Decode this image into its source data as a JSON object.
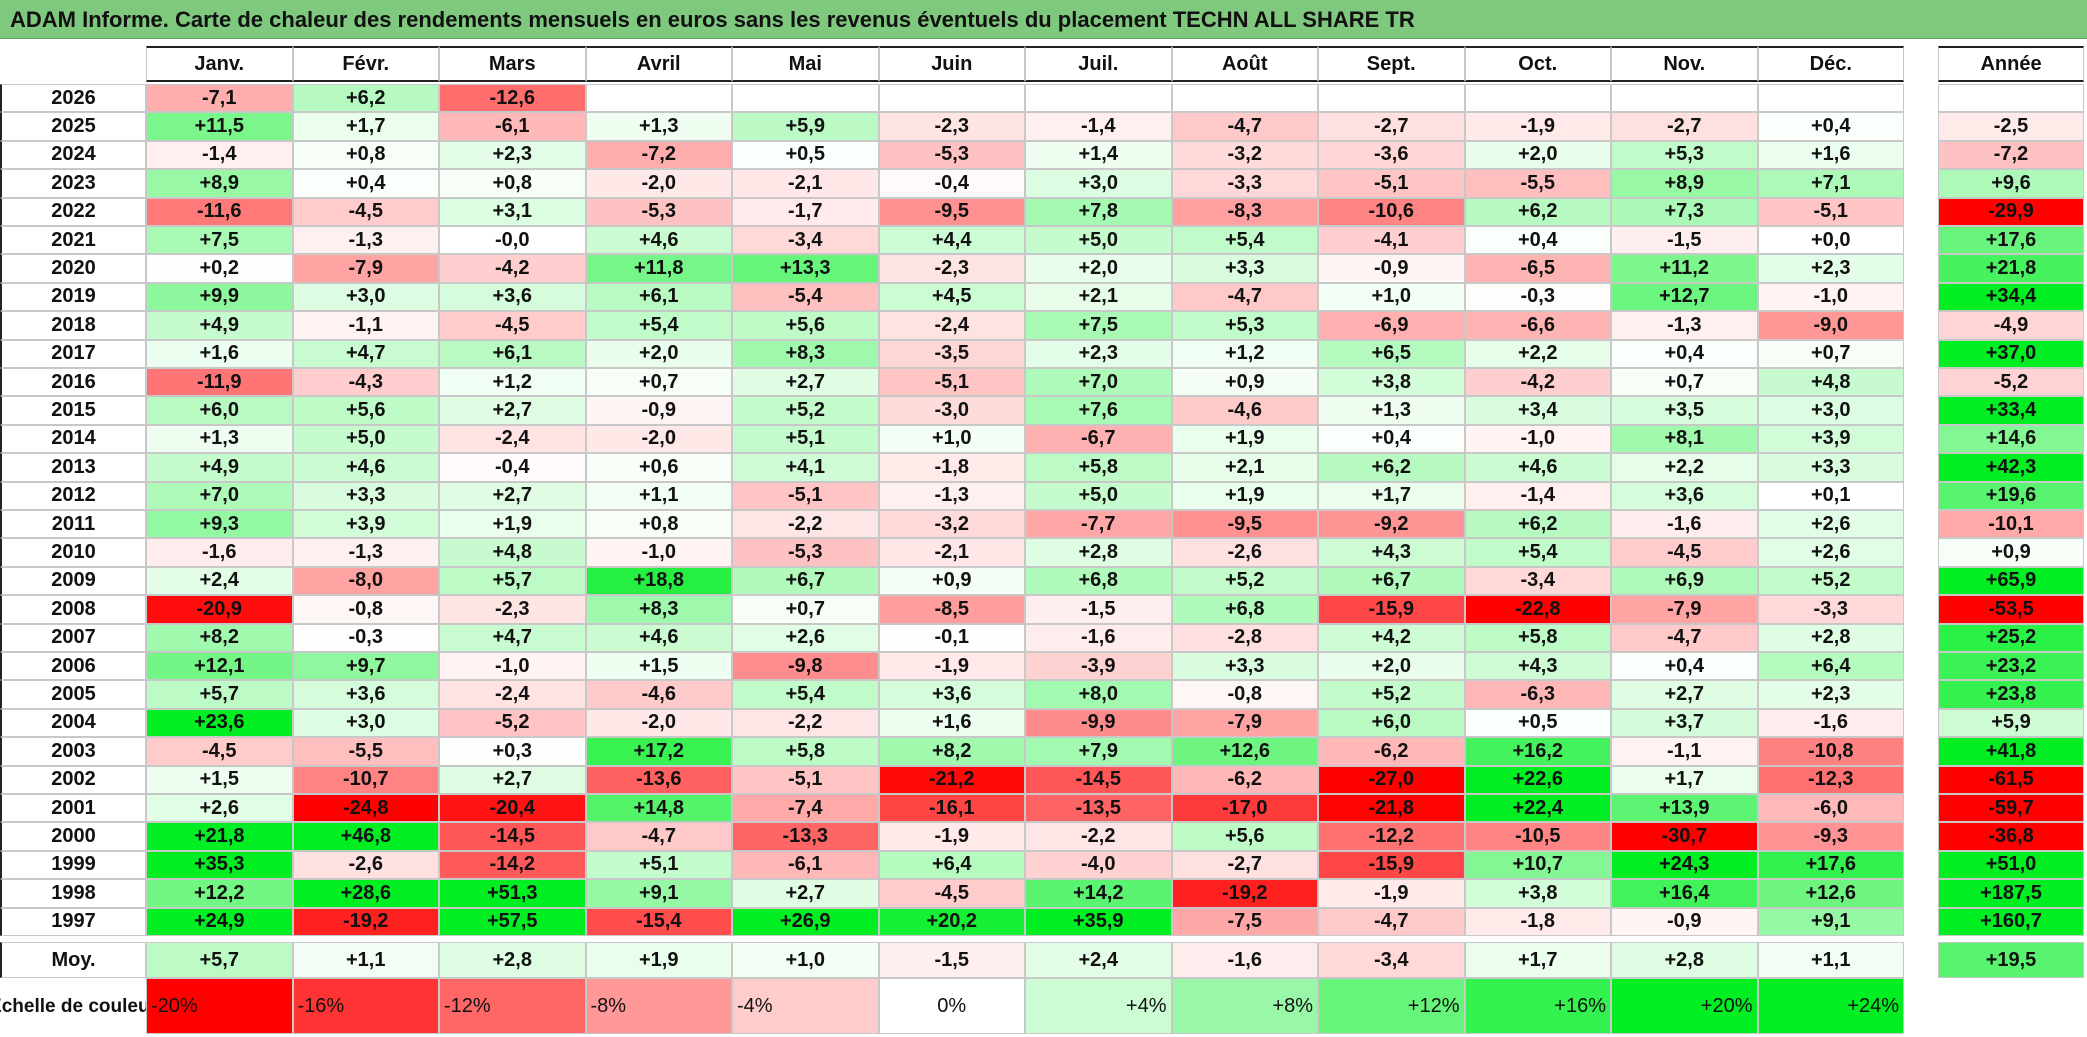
{
  "title": "ADAM Informe. Carte de chaleur des rendements mensuels en euros sans les revenus éventuels du placement TECHN ALL SHARE TR",
  "chart_data": {
    "type": "heatmap",
    "columns": [
      "Janv.",
      "Févr.",
      "Mars",
      "Avril",
      "Mai",
      "Juin",
      "Juil.",
      "Août",
      "Sept.",
      "Oct.",
      "Nov.",
      "Déc."
    ],
    "year_header": "Année",
    "rows": [
      {
        "year": "2026",
        "values": [
          "-7,1",
          "+6,2",
          "-12,6",
          "",
          "",
          "",
          "",
          "",
          "",
          "",
          "",
          ""
        ],
        "annual": ""
      },
      {
        "year": "2025",
        "values": [
          "+11,5",
          "+1,7",
          "-6,1",
          "+1,3",
          "+5,9",
          "-2,3",
          "-1,4",
          "-4,7",
          "-2,7",
          "-1,9",
          "-2,7",
          "+0,4"
        ],
        "annual": "-2,5"
      },
      {
        "year": "2024",
        "values": [
          "-1,4",
          "+0,8",
          "+2,3",
          "-7,2",
          "+0,5",
          "-5,3",
          "+1,4",
          "-3,2",
          "-3,6",
          "+2,0",
          "+5,3",
          "+1,6"
        ],
        "annual": "-7,2"
      },
      {
        "year": "2023",
        "values": [
          "+8,9",
          "+0,4",
          "+0,8",
          "-2,0",
          "-2,1",
          "-0,4",
          "+3,0",
          "-3,3",
          "-5,1",
          "-5,5",
          "+8,9",
          "+7,1"
        ],
        "annual": "+9,6"
      },
      {
        "year": "2022",
        "values": [
          "-11,6",
          "-4,5",
          "+3,1",
          "-5,3",
          "-1,7",
          "-9,5",
          "+7,8",
          "-8,3",
          "-10,6",
          "+6,2",
          "+7,3",
          "-5,1"
        ],
        "annual": "-29,9"
      },
      {
        "year": "2021",
        "values": [
          "+7,5",
          "-1,3",
          "-0,0",
          "+4,6",
          "-3,4",
          "+4,4",
          "+5,0",
          "+5,4",
          "-4,1",
          "+0,4",
          "-1,5",
          "+0,0"
        ],
        "annual": "+17,6"
      },
      {
        "year": "2020",
        "values": [
          "+0,2",
          "-7,9",
          "-4,2",
          "+11,8",
          "+13,3",
          "-2,3",
          "+2,0",
          "+3,3",
          "-0,9",
          "-6,5",
          "+11,2",
          "+2,3"
        ],
        "annual": "+21,8"
      },
      {
        "year": "2019",
        "values": [
          "+9,9",
          "+3,0",
          "+3,6",
          "+6,1",
          "-5,4",
          "+4,5",
          "+2,1",
          "-4,7",
          "+1,0",
          "-0,3",
          "+12,7",
          "-1,0"
        ],
        "annual": "+34,4"
      },
      {
        "year": "2018",
        "values": [
          "+4,9",
          "-1,1",
          "-4,5",
          "+5,4",
          "+5,6",
          "-2,4",
          "+7,5",
          "+5,3",
          "-6,9",
          "-6,6",
          "-1,3",
          "-9,0"
        ],
        "annual": "-4,9"
      },
      {
        "year": "2017",
        "values": [
          "+1,6",
          "+4,7",
          "+6,1",
          "+2,0",
          "+8,3",
          "-3,5",
          "+2,3",
          "+1,2",
          "+6,5",
          "+2,2",
          "+0,4",
          "+0,7"
        ],
        "annual": "+37,0"
      },
      {
        "year": "2016",
        "values": [
          "-11,9",
          "-4,3",
          "+1,2",
          "+0,7",
          "+2,7",
          "-5,1",
          "+7,0",
          "+0,9",
          "+3,8",
          "-4,2",
          "+0,7",
          "+4,8"
        ],
        "annual": "-5,2"
      },
      {
        "year": "2015",
        "values": [
          "+6,0",
          "+5,6",
          "+2,7",
          "-0,9",
          "+5,2",
          "-3,0",
          "+7,6",
          "-4,6",
          "+1,3",
          "+3,4",
          "+3,5",
          "+3,0"
        ],
        "annual": "+33,4"
      },
      {
        "year": "2014",
        "values": [
          "+1,3",
          "+5,0",
          "-2,4",
          "-2,0",
          "+5,1",
          "+1,0",
          "-6,7",
          "+1,9",
          "+0,4",
          "-1,0",
          "+8,1",
          "+3,9"
        ],
        "annual": "+14,6"
      },
      {
        "year": "2013",
        "values": [
          "+4,9",
          "+4,6",
          "-0,4",
          "+0,6",
          "+4,1",
          "-1,8",
          "+5,8",
          "+2,1",
          "+6,2",
          "+4,6",
          "+2,2",
          "+3,3"
        ],
        "annual": "+42,3"
      },
      {
        "year": "2012",
        "values": [
          "+7,0",
          "+3,3",
          "+2,7",
          "+1,1",
          "-5,1",
          "-1,3",
          "+5,0",
          "+1,9",
          "+1,7",
          "-1,4",
          "+3,6",
          "+0,1"
        ],
        "annual": "+19,6"
      },
      {
        "year": "2011",
        "values": [
          "+9,3",
          "+3,9",
          "+1,9",
          "+0,8",
          "-2,2",
          "-3,2",
          "-7,7",
          "-9,5",
          "-9,2",
          "+6,2",
          "-1,6",
          "+2,6"
        ],
        "annual": "-10,1"
      },
      {
        "year": "2010",
        "values": [
          "-1,6",
          "-1,3",
          "+4,8",
          "-1,0",
          "-5,3",
          "-2,1",
          "+2,8",
          "-2,6",
          "+4,3",
          "+5,4",
          "-4,5",
          "+2,6"
        ],
        "annual": "+0,9"
      },
      {
        "year": "2009",
        "values": [
          "+2,4",
          "-8,0",
          "+5,7",
          "+18,8",
          "+6,7",
          "+0,9",
          "+6,8",
          "+5,2",
          "+6,7",
          "-3,4",
          "+6,9",
          "+5,2"
        ],
        "annual": "+65,9"
      },
      {
        "year": "2008",
        "values": [
          "-20,9",
          "-0,8",
          "-2,3",
          "+8,3",
          "+0,7",
          "-8,5",
          "-1,5",
          "+6,8",
          "-15,9",
          "-22,8",
          "-7,9",
          "-3,3"
        ],
        "annual": "-53,5"
      },
      {
        "year": "2007",
        "values": [
          "+8,2",
          "-0,3",
          "+4,7",
          "+4,6",
          "+2,6",
          "-0,1",
          "-1,6",
          "-2,8",
          "+4,2",
          "+5,8",
          "-4,7",
          "+2,8"
        ],
        "annual": "+25,2"
      },
      {
        "year": "2006",
        "values": [
          "+12,1",
          "+9,7",
          "-1,0",
          "+1,5",
          "-9,8",
          "-1,9",
          "-3,9",
          "+3,3",
          "+2,0",
          "+4,3",
          "+0,4",
          "+6,4"
        ],
        "annual": "+23,2"
      },
      {
        "year": "2005",
        "values": [
          "+5,7",
          "+3,6",
          "-2,4",
          "-4,6",
          "+5,4",
          "+3,6",
          "+8,0",
          "-0,8",
          "+5,2",
          "-6,3",
          "+2,7",
          "+2,3"
        ],
        "annual": "+23,8"
      },
      {
        "year": "2004",
        "values": [
          "+23,6",
          "+3,0",
          "-5,2",
          "-2,0",
          "-2,2",
          "+1,6",
          "-9,9",
          "-7,9",
          "+6,0",
          "+0,5",
          "+3,7",
          "-1,6"
        ],
        "annual": "+5,9"
      },
      {
        "year": "2003",
        "values": [
          "-4,5",
          "-5,5",
          "+0,3",
          "+17,2",
          "+5,8",
          "+8,2",
          "+7,9",
          "+12,6",
          "-6,2",
          "+16,2",
          "-1,1",
          "-10,8"
        ],
        "annual": "+41,8"
      },
      {
        "year": "2002",
        "values": [
          "+1,5",
          "-10,7",
          "+2,7",
          "-13,6",
          "-5,1",
          "-21,2",
          "-14,5",
          "-6,2",
          "-27,0",
          "+22,6",
          "+1,7",
          "-12,3"
        ],
        "annual": "-61,5"
      },
      {
        "year": "2001",
        "values": [
          "+2,6",
          "-24,8",
          "-20,4",
          "+14,8",
          "-7,4",
          "-16,1",
          "-13,5",
          "-17,0",
          "-21,8",
          "+22,4",
          "+13,9",
          "-6,0"
        ],
        "annual": "-59,7"
      },
      {
        "year": "2000",
        "values": [
          "+21,8",
          "+46,8",
          "-14,5",
          "-4,7",
          "-13,3",
          "-1,9",
          "-2,2",
          "+5,6",
          "-12,2",
          "-10,5",
          "-30,7",
          "-9,3"
        ],
        "annual": "-36,8"
      },
      {
        "year": "1999",
        "values": [
          "+35,3",
          "-2,6",
          "-14,2",
          "+5,1",
          "-6,1",
          "+6,4",
          "-4,0",
          "-2,7",
          "-15,9",
          "+10,7",
          "+24,3",
          "+17,6"
        ],
        "annual": "+51,0"
      },
      {
        "year": "1998",
        "values": [
          "+12,2",
          "+28,6",
          "+51,3",
          "+9,1",
          "+2,7",
          "-4,5",
          "+14,2",
          "-19,2",
          "-1,9",
          "+3,8",
          "+16,4",
          "+12,6"
        ],
        "annual": "+187,5"
      },
      {
        "year": "1997",
        "values": [
          "+24,9",
          "-19,2",
          "+57,5",
          "-15,4",
          "+26,9",
          "+20,2",
          "+35,9",
          "-7,5",
          "-4,7",
          "-1,8",
          "-0,9",
          "+9,1"
        ],
        "annual": "+160,7"
      }
    ],
    "average": {
      "label": "Moy.",
      "values": [
        "+5,7",
        "+1,1",
        "+2,8",
        "+1,9",
        "+1,0",
        "-1,5",
        "+2,4",
        "-1,6",
        "-3,4",
        "+1,7",
        "+2,8",
        "+1,1"
      ],
      "annual": "+19,5"
    },
    "scale": {
      "label": "Echelle de couleur",
      "steps": [
        "-20%",
        "-16%",
        "-12%",
        "-8%",
        "-4%",
        "0%",
        "+4%",
        "+8%",
        "+12%",
        "+16%",
        "+20%",
        "+24%"
      ]
    },
    "colors": {
      "negative": "#ff0000",
      "positive": "#00ee22",
      "neutral": "#ffffff"
    }
  }
}
